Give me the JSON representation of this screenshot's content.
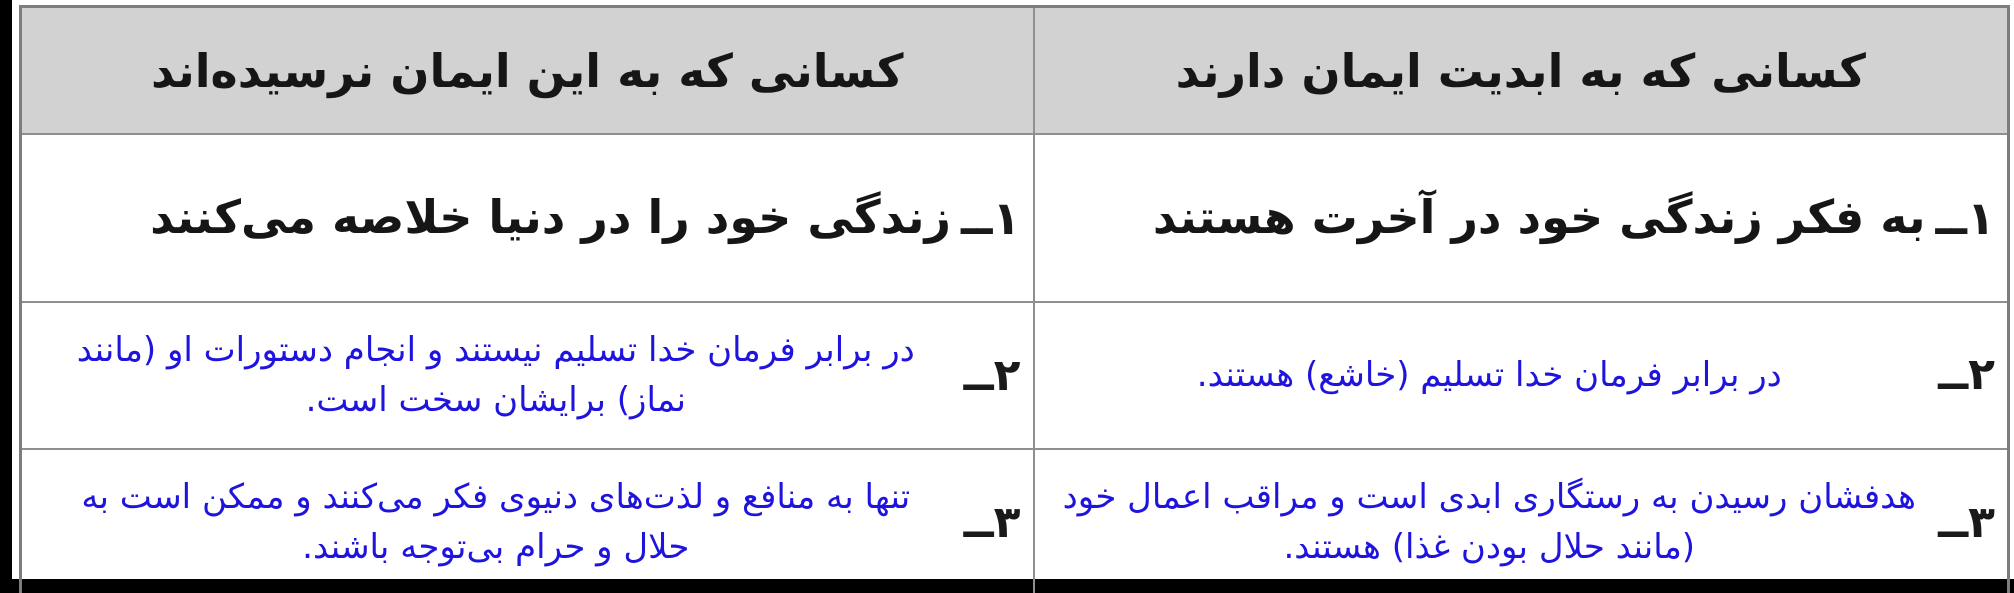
{
  "table": {
    "columns": [
      {
        "id": "believers",
        "header": "کسانی که به ابدیت ایمان دارند"
      },
      {
        "id": "non_believers",
        "header": "کسانی که به این ایمان نرسیده‌اند"
      }
    ],
    "rows": [
      {
        "number": "۱ــ",
        "style": "printed",
        "believers": "به فکر زندگی خود در آخرت هستند",
        "non_believers": "زندگی خود را در دنیا خلاصه می‌کنند"
      },
      {
        "number": "۲ــ",
        "style": "answer",
        "believers": "در برابر فرمان خدا تسلیم (خاشع) هستند.",
        "non_believers": "در برابر فرمان خدا تسلیم نیستند و انجام دستورات او (مانند نماز) برایشان سخت است."
      },
      {
        "number": "۳ــ",
        "style": "answer",
        "believers": "هدفشان رسیدن به رستگاری ابدی است و مراقب اعمال خود (مانند حلال بودن غذا) هستند.",
        "non_believers": "تنها به منافع و لذت‌های دنیوی فکر می‌کنند و ممکن است به حلال و حرام بی‌توجه باشند."
      }
    ],
    "colors": {
      "answer_text": "#1f14dd",
      "printed_text": "#161616",
      "header_bg": "#d2d2d2",
      "border": "#8f8f8f",
      "page_edge": "#000000"
    }
  }
}
